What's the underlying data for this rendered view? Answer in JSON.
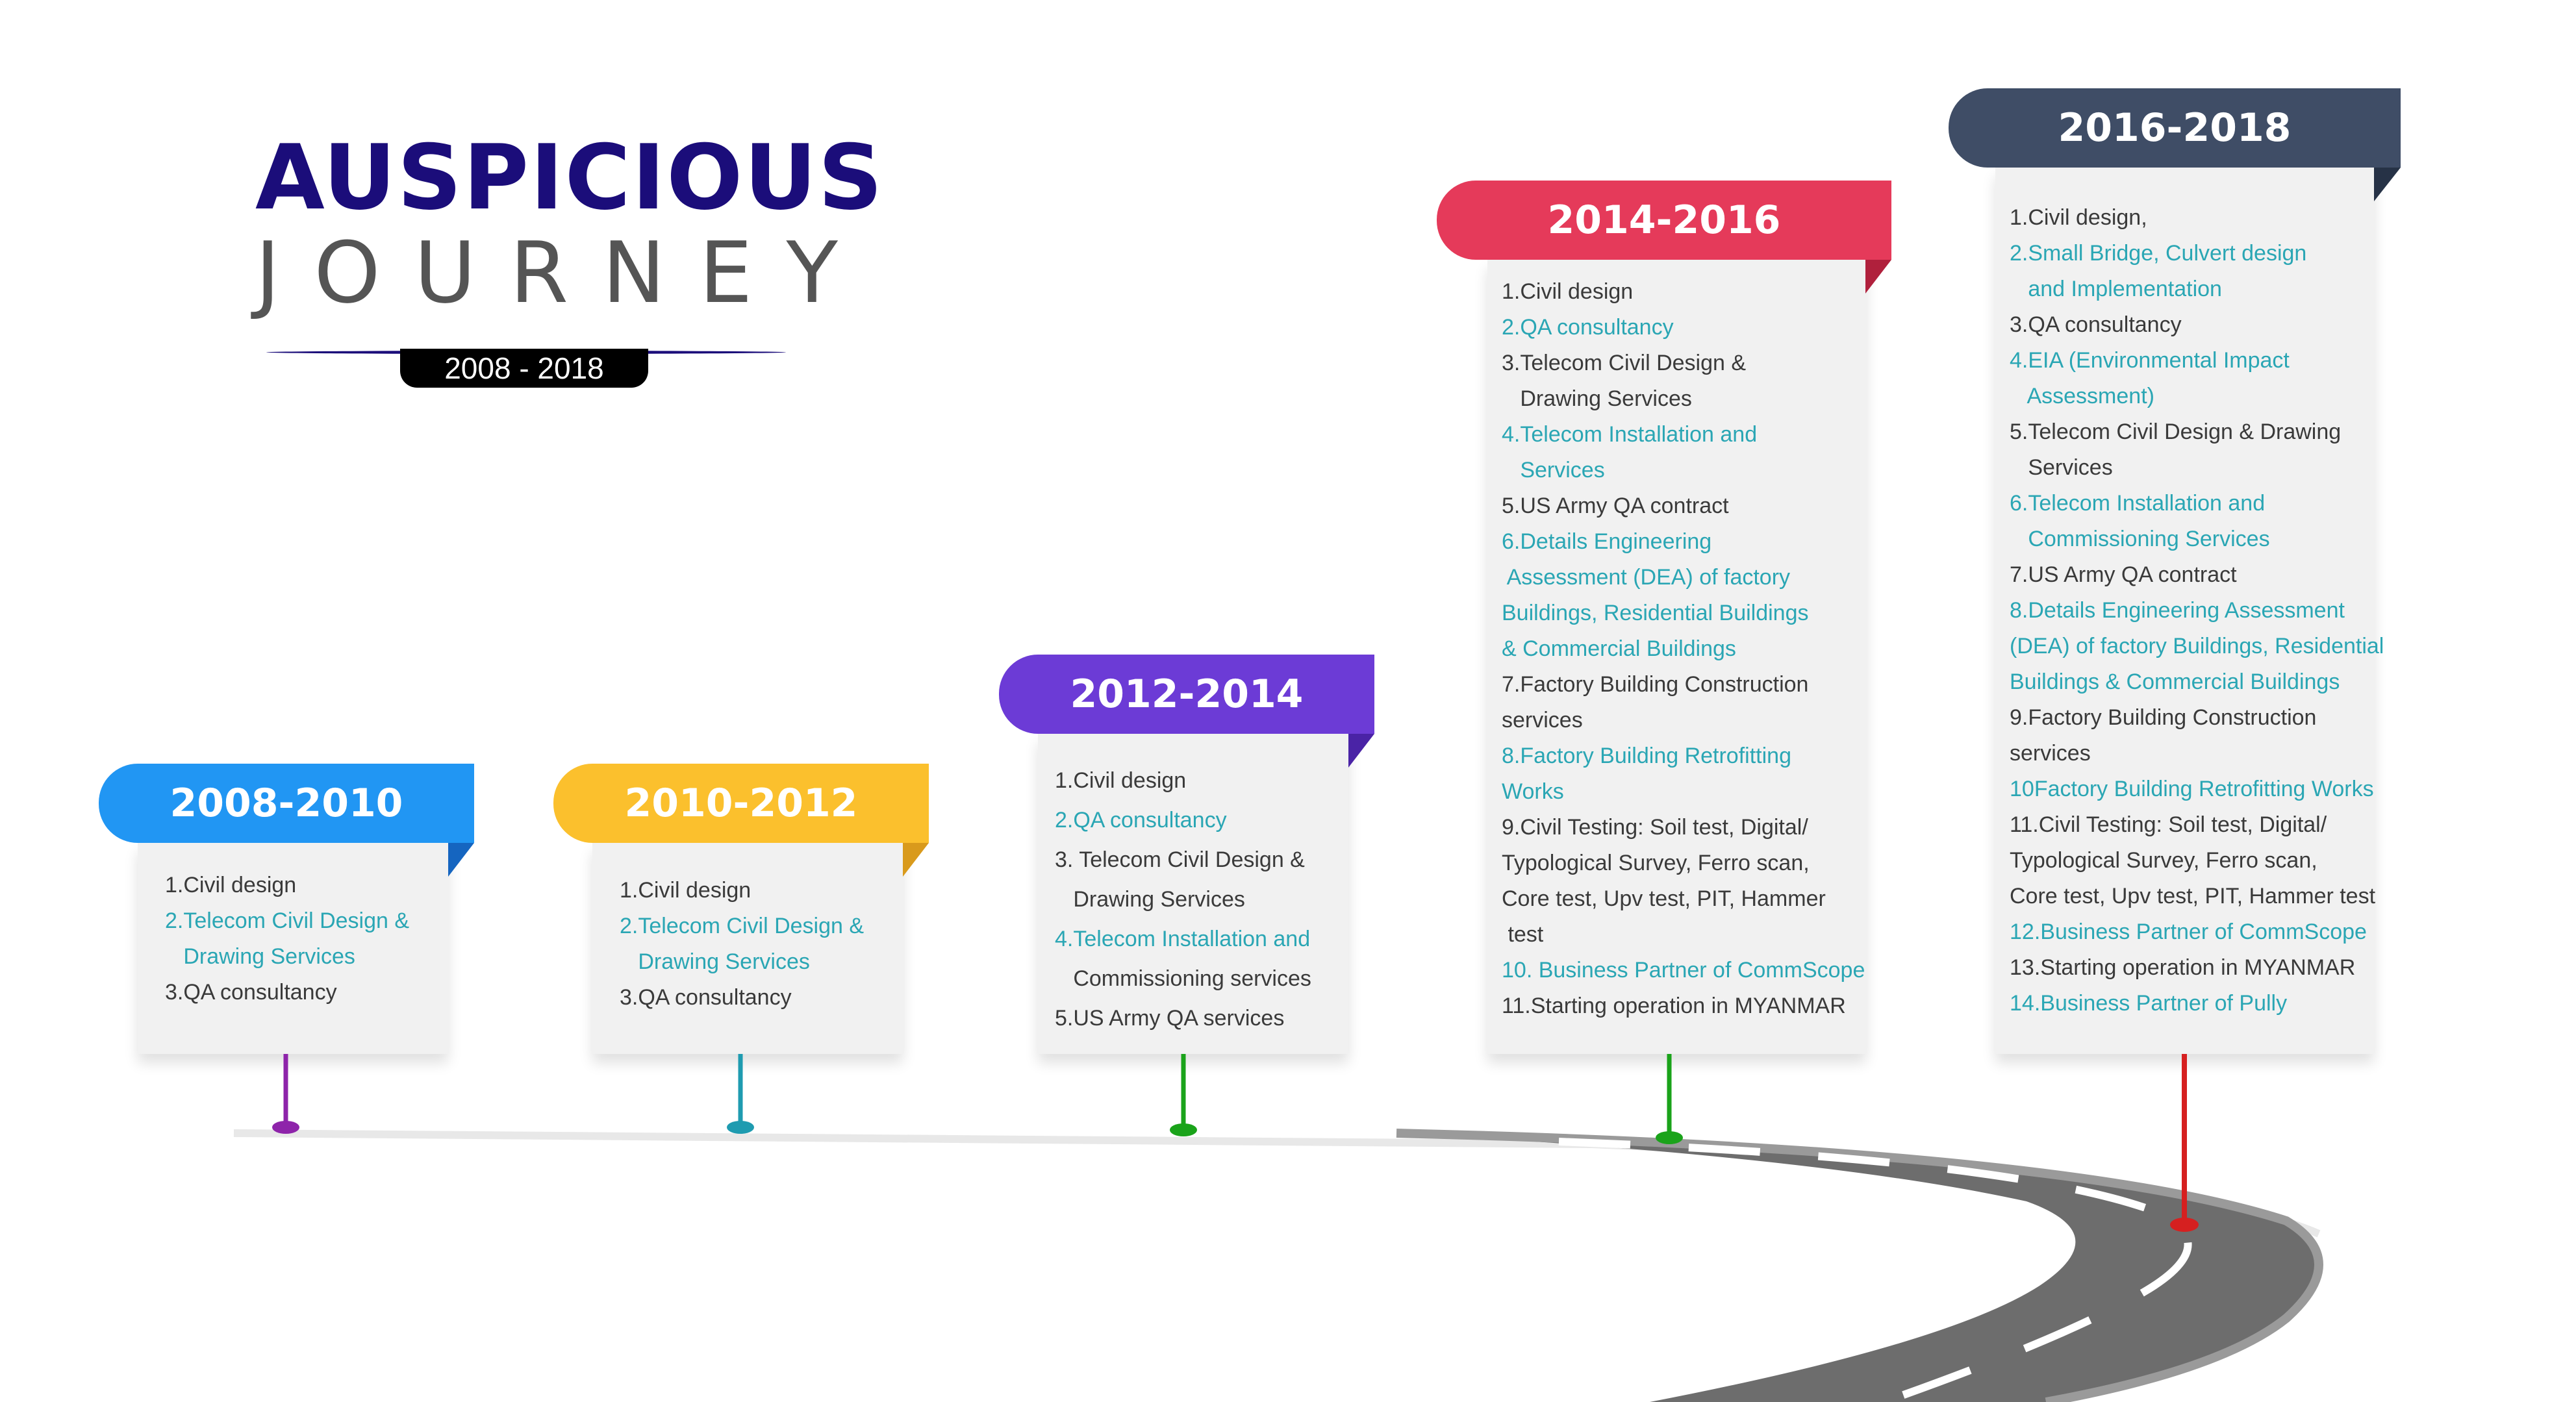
{
  "header": {
    "title_line1": "AUSPICIOUS",
    "title_line2": "JOURNEY",
    "period": "2008 - 2018"
  },
  "colors": {
    "title": "#1b0d7a",
    "road": "#6d6d6d",
    "card_bg": "#f1f1f1",
    "highlight_text": "#2aa6b4"
  },
  "milestones": [
    {
      "years": "2008-2010",
      "color": "#2196f3",
      "pin_color": "#8e24aa",
      "items": [
        "1.Civil design",
        "2.Telecom Civil Design &",
        "   Drawing Services",
        "3.QA consultancy"
      ]
    },
    {
      "years": "2010-2012",
      "color": "#fbc02d",
      "pin_color": "#1e9bb0",
      "items": [
        "1.Civil design",
        "2.Telecom Civil Design &",
        "   Drawing Services",
        "3.QA consultancy"
      ]
    },
    {
      "years": "2012-2014",
      "color": "#6c3bd6",
      "pin_color": "#1aa31a",
      "items": [
        "1.Civil design",
        "2.QA consultancy",
        "3. Telecom Civil Design &",
        "   Drawing Services",
        "4.Telecom Installation and",
        "   Commissioning services",
        "5.US Army QA services"
      ]
    },
    {
      "years": "2014-2016",
      "color": "#e53a5a",
      "pin_color": "#1aa31a",
      "items": [
        "1.Civil design",
        "2.QA consultancy",
        "3.Telecom Civil Design &",
        "   Drawing Services",
        "4.Telecom Installation and",
        "   Services",
        "5.US Army QA contract",
        "6.Details Engineering",
        " Assessment (DEA) of factory",
        "Buildings, Residential Buildings",
        "& Commercial Buildings",
        "7.Factory Building Construction",
        "services",
        "8.Factory Building Retrofitting",
        "Works",
        "9.Civil Testing: Soil test, Digital/",
        "Typological Survey, Ferro scan,",
        "Core test, Upv test, PIT, Hammer",
        " test",
        "10. Business Partner of CommScope",
        "11.Starting operation in MYANMAR"
      ]
    },
    {
      "years": "2016-2018",
      "color": "#3f4d66",
      "pin_color": "#d62020",
      "items": [
        "1.Civil design,",
        "2.Small Bridge, Culvert design",
        "   and Implementation",
        "3.QA consultancy",
        "4.EIA (Environmental Impact",
        "   Assessment)",
        "5.Telecom Civil Design & Drawing",
        "   Services",
        "6.Telecom Installation and",
        "   Commissioning Services",
        "7.US Army QA contract",
        "8.Details Engineering Assessment",
        "(DEA) of factory Buildings, Residential",
        "Buildings & Commercial Buildings",
        "9.Factory Building Construction",
        "services",
        "10Factory Building Retrofitting Works",
        "11.Civil Testing: Soil test, Digital/",
        "Typological Survey, Ferro scan,",
        "Core test, Upv test, PIT, Hammer test",
        "12.Business Partner of CommScope",
        "13.Starting operation in MYANMAR",
        "14.Business Partner of Pully"
      ]
    }
  ]
}
